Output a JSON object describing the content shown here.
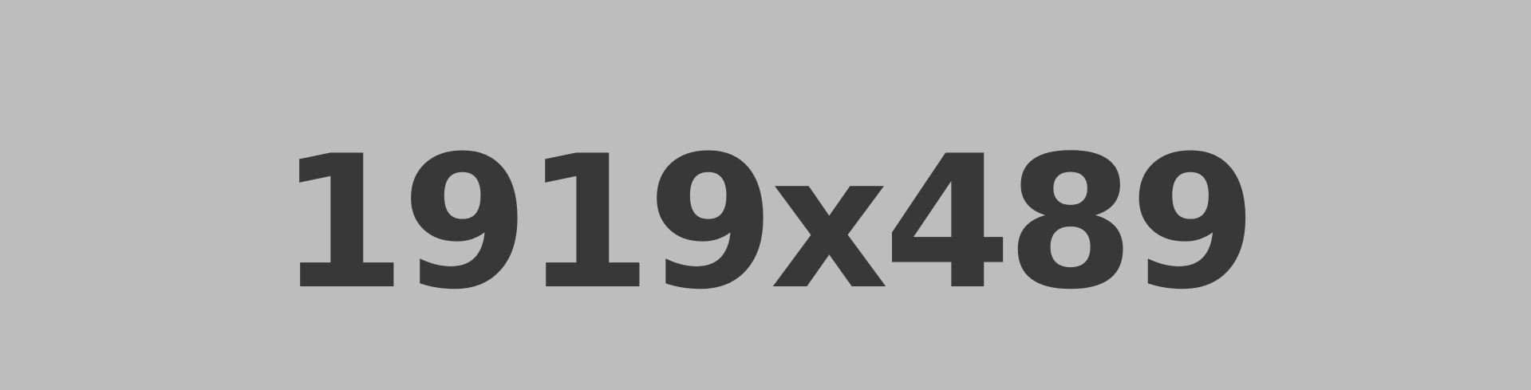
{
  "placeholder": {
    "label": "1919x489",
    "background_color": "#bdbdbd",
    "text_color": "#383838"
  }
}
